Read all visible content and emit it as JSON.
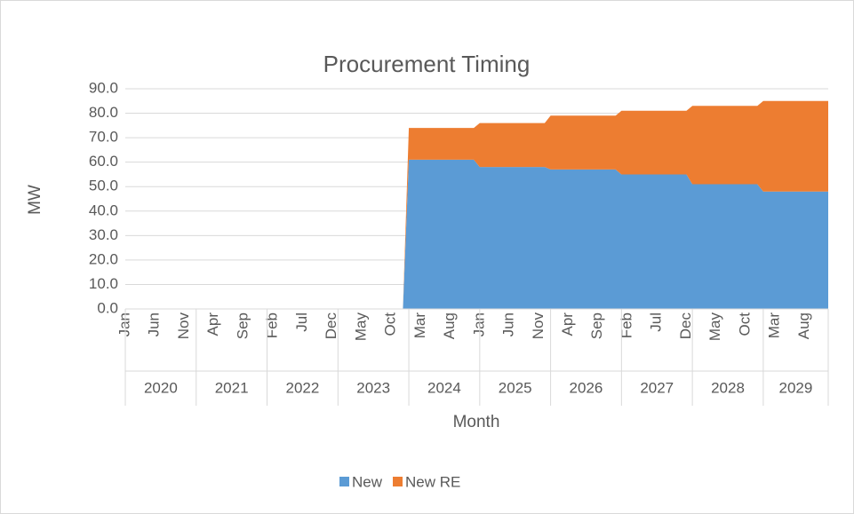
{
  "chart_data": {
    "type": "stacked_area",
    "title": "Procurement Timing",
    "x_label": "Month",
    "y_label": "MW",
    "categories": [
      "Jan",
      null,
      null,
      null,
      null,
      "Jun",
      null,
      null,
      null,
      null,
      "Nov",
      null,
      null,
      null,
      null,
      "Apr",
      null,
      null,
      null,
      null,
      "Sep",
      null,
      null,
      null,
      null,
      "Feb",
      null,
      null,
      null,
      null,
      "Jul",
      null,
      null,
      null,
      null,
      "Dec",
      null,
      null,
      null,
      null,
      "May",
      null,
      null,
      null,
      null,
      "Oct",
      null,
      null,
      null,
      null,
      "Mar",
      null,
      null,
      null,
      null,
      "Aug",
      null,
      null,
      null,
      null,
      "Jan",
      null,
      null,
      null,
      null,
      "Jun",
      null,
      null,
      null,
      null,
      "Nov",
      null,
      null,
      null,
      null,
      "Apr",
      null,
      null,
      null,
      null,
      "Sep",
      null,
      null,
      null,
      null,
      "Feb",
      null,
      null,
      null,
      null,
      "Jul",
      null,
      null,
      null,
      null,
      "Dec",
      null,
      null,
      null,
      null,
      "May",
      null,
      null,
      null,
      null,
      "Oct",
      null,
      null,
      null,
      null,
      "Mar",
      null,
      null,
      null,
      null,
      "Aug",
      null,
      null,
      null,
      null
    ],
    "year_groups": [
      "2020",
      "2021",
      "2022",
      "2023",
      "2024",
      "2025",
      "2026",
      "2027",
      "2028",
      "2029"
    ],
    "series": [
      {
        "name": "New",
        "color": "#5b9bd5",
        "values": [
          0,
          0,
          0,
          0,
          0,
          0,
          0,
          0,
          0,
          0,
          0,
          0,
          0,
          0,
          0,
          0,
          0,
          0,
          0,
          0,
          0,
          0,
          0,
          0,
          0,
          0,
          0,
          0,
          0,
          0,
          0,
          0,
          0,
          0,
          0,
          0,
          0,
          0,
          0,
          0,
          0,
          0,
          0,
          0,
          0,
          0,
          0,
          0,
          61,
          61,
          61,
          61,
          61,
          61,
          61,
          61,
          61,
          61,
          61,
          61,
          58,
          58,
          58,
          58,
          58,
          58,
          58,
          58,
          58,
          58,
          58,
          58,
          57,
          57,
          57,
          57,
          57,
          57,
          57,
          57,
          57,
          57,
          57,
          57,
          55,
          55,
          55,
          55,
          55,
          55,
          55,
          55,
          55,
          55,
          55,
          55,
          51,
          51,
          51,
          51,
          51,
          51,
          51,
          51,
          51,
          51,
          51,
          51,
          48,
          48,
          48,
          48,
          48,
          48,
          48,
          48,
          48,
          48,
          48,
          48
        ]
      },
      {
        "name": "New RE",
        "color": "#ed7d31",
        "values": [
          0,
          0,
          0,
          0,
          0,
          0,
          0,
          0,
          0,
          0,
          0,
          0,
          0,
          0,
          0,
          0,
          0,
          0,
          0,
          0,
          0,
          0,
          0,
          0,
          0,
          0,
          0,
          0,
          0,
          0,
          0,
          0,
          0,
          0,
          0,
          0,
          0,
          0,
          0,
          0,
          0,
          0,
          0,
          0,
          0,
          0,
          0,
          0,
          13,
          13,
          13,
          13,
          13,
          13,
          13,
          13,
          13,
          13,
          13,
          13,
          18,
          18,
          18,
          18,
          18,
          18,
          18,
          18,
          18,
          18,
          18,
          18,
          22,
          22,
          22,
          22,
          22,
          22,
          22,
          22,
          22,
          22,
          22,
          22,
          26,
          26,
          26,
          26,
          26,
          26,
          26,
          26,
          26,
          26,
          26,
          26,
          32,
          32,
          32,
          32,
          32,
          32,
          32,
          32,
          32,
          32,
          32,
          32,
          37,
          37,
          37,
          37,
          37,
          37,
          37,
          37,
          37,
          37,
          37,
          37
        ]
      }
    ],
    "ylim": [
      0,
      90
    ],
    "yticks": [
      {
        "value": 0,
        "label": "0.0"
      },
      {
        "value": 10,
        "label": "10.0"
      },
      {
        "value": 20,
        "label": "20.0"
      },
      {
        "value": 30,
        "label": "30.0"
      },
      {
        "value": 40,
        "label": "40.0"
      },
      {
        "value": 50,
        "label": "50.0"
      },
      {
        "value": 60,
        "label": "60.0"
      },
      {
        "value": 70,
        "label": "70.0"
      },
      {
        "value": 80,
        "label": "80.0"
      },
      {
        "value": 90,
        "label": "90.0"
      }
    ],
    "grid": true,
    "legend": "bottom"
  }
}
